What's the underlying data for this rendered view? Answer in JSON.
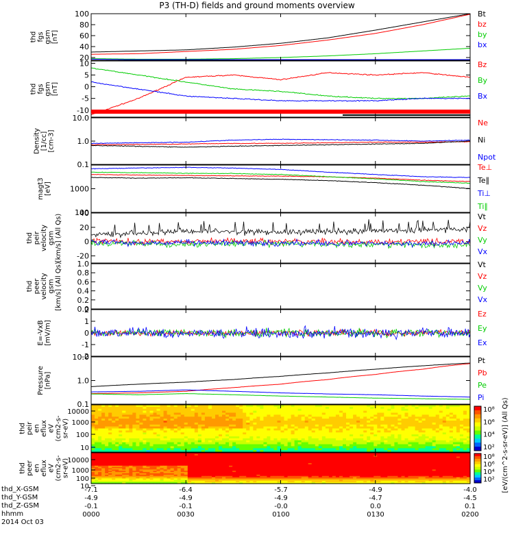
{
  "title": "P3 (TH-D) fields and ground moments overview",
  "chart_data": [
    {
      "type": "line",
      "id": "fgs",
      "ylabel": [
        "thd",
        "fgs",
        "gsm",
        "[nT]"
      ],
      "ylim": [
        15,
        100
      ],
      "yticks": [
        100,
        80,
        60,
        40,
        20
      ],
      "series": [
        {
          "name": "Bt",
          "color": "#000000",
          "values": [
            30,
            32,
            34,
            39,
            46,
            56,
            70,
            85,
            100
          ]
        },
        {
          "name": "bz",
          "color": "#ff0000",
          "values": [
            26,
            27,
            31,
            35,
            42,
            52,
            64,
            80,
            99
          ]
        },
        {
          "name": "by",
          "color": "#00cc00",
          "values": [
            18,
            17,
            17,
            18,
            20,
            23,
            27,
            32,
            37
          ]
        },
        {
          "name": "bx",
          "color": "#0000ff",
          "values": [
            17,
            16,
            15,
            15,
            15,
            16,
            15,
            16,
            16
          ]
        }
      ]
    },
    {
      "type": "line",
      "id": "fgs2",
      "ylabel": [
        "thd",
        "fgs",
        "gsm",
        "[nT]"
      ],
      "ylim": [
        -13,
        11
      ],
      "yticks": [
        10,
        5,
        0,
        -5,
        -10
      ],
      "series": [
        {
          "name": "Bz",
          "color": "#ff0000",
          "values": [
            -12,
            -5,
            4,
            5,
            3,
            6,
            5,
            6,
            4
          ]
        },
        {
          "name": "By",
          "color": "#00cc00",
          "values": [
            8,
            5,
            2,
            -1,
            -2,
            -4,
            -5,
            -5,
            -4
          ]
        },
        {
          "name": "Bx",
          "color": "#0000ff",
          "values": [
            2,
            -1,
            -4,
            -5,
            -6,
            -6,
            -6,
            -5,
            -5
          ]
        }
      ]
    },
    {
      "type": "line",
      "id": "density",
      "ylabel": [
        "Density",
        "[1/cc]",
        "[cm-3]"
      ],
      "log": true,
      "ylim": [
        0.1,
        10
      ],
      "yticks": [
        "10.0",
        "1.0",
        "0.1"
      ],
      "series": [
        {
          "name": "Ne",
          "color": "#ff0000",
          "values": [
            0.7,
            0.72,
            0.75,
            0.8,
            0.8,
            0.85,
            0.9,
            0.9,
            0.95
          ]
        },
        {
          "name": "Ni",
          "color": "#000000",
          "values": [
            0.65,
            0.6,
            0.55,
            0.6,
            0.65,
            0.7,
            0.75,
            0.8,
            1.0
          ]
        },
        {
          "name": "Npot",
          "color": "#0000ff",
          "values": [
            0.8,
            0.85,
            0.9,
            1.1,
            1.2,
            1.15,
            1.1,
            1.0,
            1.1
          ]
        }
      ]
    },
    {
      "type": "line",
      "id": "temp",
      "ylabel": [
        "magt3",
        "[eV]"
      ],
      "log": true,
      "ylim": [
        100,
        10000
      ],
      "yticks": [
        "1000",
        "100"
      ],
      "series": [
        {
          "name": "Te⊥",
          "color": "#ff0000",
          "values": [
            4000,
            3800,
            3600,
            3500,
            3400,
            3200,
            2800,
            2300,
            2000
          ]
        },
        {
          "name": "Te∥",
          "color": "#000000",
          "values": [
            3000,
            2800,
            2900,
            2700,
            2500,
            2200,
            1800,
            1400,
            1000
          ]
        },
        {
          "name": "Ti⊥",
          "color": "#0000ff",
          "values": [
            7000,
            7500,
            8000,
            7500,
            6500,
            5000,
            4000,
            3200,
            3000
          ]
        },
        {
          "name": "Ti∥",
          "color": "#00cc00",
          "values": [
            5000,
            4800,
            4500,
            4400,
            4000,
            3200,
            2600,
            2000,
            1700
          ]
        }
      ]
    },
    {
      "type": "line",
      "id": "peir",
      "ylabel": [
        "thd",
        "peir",
        "velocity",
        "gsm",
        "[km/s] (All Qs)"
      ],
      "ylim": [
        -30,
        40
      ],
      "yticks": [
        40,
        20,
        0,
        -20
      ],
      "series": [
        {
          "name": "Vt",
          "color": "#000000",
          "values": [
            10,
            12,
            15,
            14,
            13,
            14,
            15,
            16,
            18
          ]
        },
        {
          "name": "Vz",
          "color": "#ff0000",
          "values": [
            2,
            0,
            0,
            1,
            0,
            0,
            -1,
            0,
            0
          ]
        },
        {
          "name": "Vy",
          "color": "#00cc00",
          "values": [
            -2,
            -3,
            -4,
            -3,
            -3,
            -4,
            -4,
            -5,
            -5
          ]
        },
        {
          "name": "Vx",
          "color": "#0000ff",
          "values": [
            0,
            -2,
            -2,
            -1,
            -2,
            -2,
            -3,
            -3,
            -2
          ]
        }
      ]
    },
    {
      "type": "line",
      "id": "peer",
      "ylabel": [
        "thd",
        "peer",
        "velocity",
        "gsm",
        "[km/s] (All Qs)"
      ],
      "ylim": [
        0,
        1
      ],
      "yticks": [
        "1.0",
        "0.8",
        "0.6",
        "0.4",
        "0.2",
        "0.0"
      ],
      "series": [
        {
          "name": "Vt",
          "color": "#000000",
          "values": []
        },
        {
          "name": "Vz",
          "color": "#ff0000",
          "values": []
        },
        {
          "name": "Vy",
          "color": "#00cc00",
          "values": []
        },
        {
          "name": "Vx",
          "color": "#0000ff",
          "values": []
        }
      ]
    },
    {
      "type": "line",
      "id": "efield",
      "ylabel": [
        "E=-VxB",
        "[mV/m]"
      ],
      "ylim": [
        -2,
        2
      ],
      "yticks": [
        2,
        1,
        0,
        -1,
        -2
      ],
      "series": [
        {
          "name": "Ez",
          "color": "#ff0000",
          "values": [
            0,
            0,
            0,
            0,
            0,
            0,
            0,
            0,
            0
          ]
        },
        {
          "name": "Ey",
          "color": "#00cc00",
          "values": [
            0,
            0,
            0,
            0,
            0,
            0,
            0,
            0,
            0
          ]
        },
        {
          "name": "Ex",
          "color": "#0000ff",
          "values": [
            0,
            0,
            0,
            0,
            0,
            0,
            0,
            0,
            0
          ]
        }
      ]
    },
    {
      "type": "line",
      "id": "pressure",
      "ylabel": [
        "Pressure",
        "[nPa]"
      ],
      "log": true,
      "ylim": [
        0.1,
        10
      ],
      "yticks": [
        "10.0",
        "1.0",
        "0.1"
      ],
      "series": [
        {
          "name": "Pt",
          "color": "#000000",
          "values": [
            0.55,
            0.7,
            0.85,
            1.1,
            1.5,
            2.1,
            3.0,
            4.2,
            5.5
          ]
        },
        {
          "name": "Pb",
          "color": "#ff0000",
          "values": [
            0.28,
            0.3,
            0.35,
            0.5,
            0.7,
            1.1,
            1.8,
            3.0,
            5.2
          ]
        },
        {
          "name": "Pe",
          "color": "#00cc00",
          "values": [
            0.27,
            0.25,
            0.28,
            0.25,
            0.22,
            0.2,
            0.18,
            0.17,
            0.16
          ]
        },
        {
          "name": "Pi",
          "color": "#0000ff",
          "values": [
            0.33,
            0.35,
            0.4,
            0.35,
            0.3,
            0.27,
            0.25,
            0.22,
            0.2
          ]
        }
      ]
    },
    {
      "type": "heatmap",
      "id": "peir_spec",
      "ylabel": [
        "thd",
        "peir",
        "en",
        "eflux",
        "eV",
        "(cm2-s-",
        "sr-eV)"
      ],
      "yticks": [
        "10000",
        "1000",
        "100",
        "10"
      ]
    },
    {
      "type": "heatmap",
      "id": "peer_spec",
      "ylabel": [
        "thd",
        "peer",
        "en",
        "eflux",
        "eV",
        "(cm2-s-",
        "sr-eV)"
      ],
      "yticks": [
        "10000",
        "1000",
        "100",
        "10"
      ]
    }
  ],
  "colorbar": {
    "label": "[eV/(cm^2-s-sr-eV)] (All Qs)",
    "ticks1": [
      "10⁸",
      "10⁶",
      "10⁴",
      "10²"
    ],
    "ticks2": [
      "10⁸",
      "10⁶",
      "10⁴",
      "10²"
    ]
  },
  "xaxis": {
    "ticks": [
      "0000",
      "0030",
      "0100",
      "0130",
      "0200"
    ],
    "rows": [
      {
        "label": "thd_X-GSM",
        "values": [
          "-7.1",
          "-6.4",
          "-5.7",
          "-4.9",
          "-4.0"
        ]
      },
      {
        "label": "thd_Y-GSM",
        "values": [
          "-4.9",
          "-4.9",
          "-4.9",
          "-4.7",
          "-4.5"
        ]
      },
      {
        "label": "thd_Z-GSM",
        "values": [
          "-0.1",
          "-0.1",
          "-0.0",
          "0.0",
          "0.1"
        ]
      },
      {
        "label": "hhmm",
        "values": [
          "0000",
          "0030",
          "0100",
          "0130",
          "0200"
        ]
      }
    ],
    "date": "2014 Oct 03"
  }
}
